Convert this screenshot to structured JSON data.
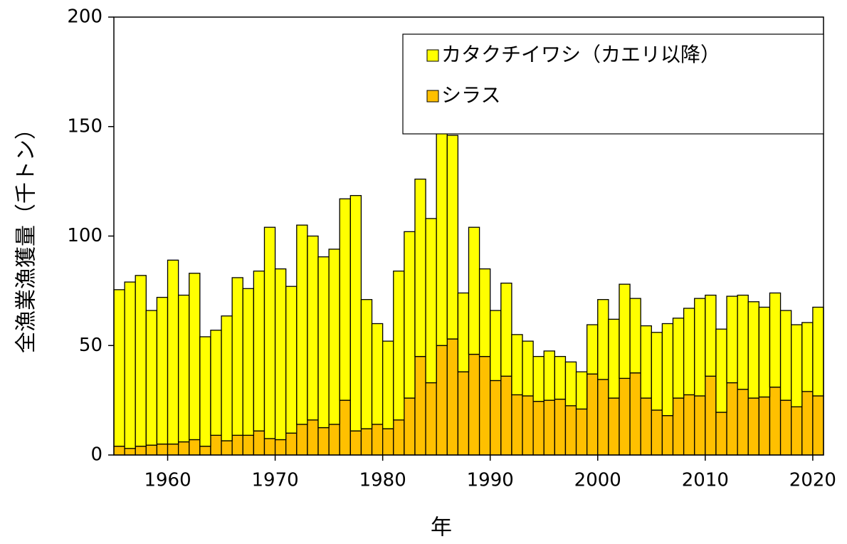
{
  "chart_data": {
    "type": "stacked_bar",
    "ylabel": "全漁業漁獲量（千トン）",
    "xlabel": "年",
    "x": [
      1955,
      1956,
      1957,
      1958,
      1959,
      1960,
      1961,
      1962,
      1963,
      1964,
      1965,
      1966,
      1967,
      1968,
      1969,
      1970,
      1971,
      1972,
      1973,
      1974,
      1975,
      1976,
      1977,
      1978,
      1979,
      1980,
      1981,
      1982,
      1983,
      1984,
      1985,
      1986,
      1987,
      1988,
      1989,
      1990,
      1991,
      1992,
      1993,
      1994,
      1995,
      1996,
      1997,
      1998,
      1999,
      2000,
      2001,
      2002,
      2003,
      2004,
      2005,
      2006,
      2007,
      2008,
      2009,
      2010,
      2011,
      2012,
      2013,
      2014,
      2015,
      2016,
      2017,
      2018,
      2019,
      2020
    ],
    "series": [
      {
        "name": "シラス",
        "color": "#ffc000",
        "values": [
          4,
          3,
          4,
          4.5,
          5,
          5,
          6,
          7,
          4,
          9,
          6.5,
          9,
          9,
          11,
          7.5,
          7,
          10,
          14,
          16,
          12.5,
          14,
          25,
          11,
          12,
          14,
          12,
          16,
          26,
          45,
          33,
          50,
          53,
          38,
          46,
          45,
          34,
          36,
          27.5,
          27,
          24.5,
          25,
          25.5,
          22.5,
          21,
          37,
          34.5,
          26,
          35,
          37.5,
          26,
          20.5,
          18,
          26,
          27.5,
          27,
          36,
          19.5,
          33,
          30,
          26,
          26.5,
          31,
          25,
          22,
          29,
          27
        ]
      },
      {
        "name": "カタクチイワシ（カエリ以降）",
        "color": "#ffff00",
        "values": [
          71.5,
          76,
          78,
          61.5,
          67,
          84,
          67,
          76,
          50,
          48,
          57,
          72,
          67,
          73,
          96.5,
          78,
          67,
          91,
          84,
          78,
          80,
          92,
          107.5,
          59,
          46,
          40,
          68,
          76,
          81,
          75,
          100,
          93,
          36,
          58,
          40,
          32,
          42.5,
          27.5,
          25,
          20.5,
          22.5,
          19.5,
          20,
          17,
          22.5,
          36.5,
          36,
          43,
          34,
          33,
          35.5,
          42,
          36.5,
          39.5,
          44.5,
          37,
          38,
          39.5,
          43,
          44,
          41,
          43,
          41,
          37.5,
          31.5,
          40.5
        ]
      }
    ],
    "xlim": [
      1955,
      2021
    ],
    "xticks": [
      1960,
      1970,
      1980,
      1990,
      2000,
      2010,
      2020
    ],
    "ylim": [
      0,
      200
    ],
    "yticks": [
      0,
      50,
      100,
      150,
      200
    ],
    "legend": "upper right"
  }
}
